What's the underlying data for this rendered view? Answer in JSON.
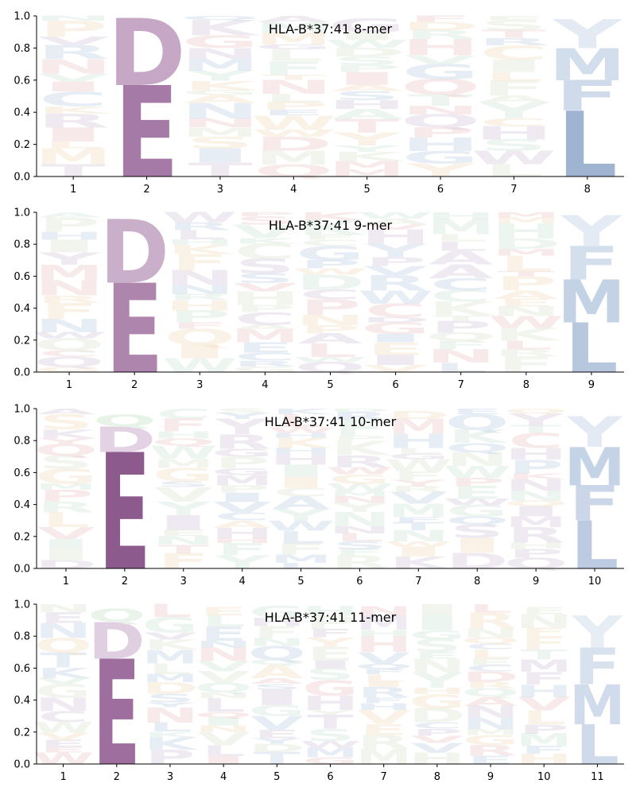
{
  "chart_data": [
    {
      "type": "sequence-logo",
      "title": "HLA-B*37:41 8-mer",
      "ylim": [
        0,
        1
      ],
      "yticks": [
        "0.0",
        "0.2",
        "0.4",
        "0.6",
        "0.8",
        "1.0"
      ],
      "positions": [
        "1",
        "2",
        "3",
        "4",
        "5",
        "6",
        "7",
        "8"
      ],
      "anchors": [
        {
          "position": 2,
          "stack": [
            {
              "letter": "E",
              "value": 0.57,
              "color": "#a57aa6",
              "opacity": 1.0
            },
            {
              "letter": "D",
              "value": 0.42,
              "color": "#c6a8c6",
              "opacity": 1.0
            }
          ]
        },
        {
          "position": 8,
          "stack": [
            {
              "letter": "L",
              "value": 0.41,
              "color": "#9fb4d1",
              "opacity": 1.0
            },
            {
              "letter": "F",
              "value": 0.19,
              "color": "#cfdbea",
              "opacity": 1.0
            },
            {
              "letter": "M",
              "value": 0.2,
              "color": "#d3deec",
              "opacity": 1.0
            },
            {
              "letter": "Y",
              "value": 0.18,
              "color": "#e3eaf3",
              "opacity": 1.0
            }
          ]
        }
      ]
    },
    {
      "type": "sequence-logo",
      "title": "HLA-B*37:41 9-mer",
      "ylim": [
        0,
        1
      ],
      "yticks": [
        "0.0",
        "0.2",
        "0.4",
        "0.6",
        "0.8",
        "1.0"
      ],
      "positions": [
        "1",
        "2",
        "3",
        "4",
        "5",
        "6",
        "7",
        "8",
        "9"
      ],
      "anchors": [
        {
          "position": 2,
          "stack": [
            {
              "letter": "E",
              "value": 0.56,
              "color": "#ad85ad",
              "opacity": 1.0
            },
            {
              "letter": "D",
              "value": 0.4,
              "color": "#c9afc9",
              "opacity": 1.0
            }
          ]
        },
        {
          "position": 9,
          "stack": [
            {
              "letter": "L",
              "value": 0.31,
              "color": "#b6c7de",
              "opacity": 1.0
            },
            {
              "letter": "M",
              "value": 0.27,
              "color": "#c3d2e5",
              "opacity": 1.0
            },
            {
              "letter": "F",
              "value": 0.21,
              "color": "#d4dfed",
              "opacity": 1.0
            },
            {
              "letter": "Y",
              "value": 0.19,
              "color": "#e4ebf4",
              "opacity": 1.0
            }
          ]
        }
      ]
    },
    {
      "type": "sequence-logo",
      "title": "HLA-B*37:41 10-mer",
      "ylim": [
        0,
        1
      ],
      "yticks": [
        "0.0",
        "0.2",
        "0.4",
        "0.6",
        "0.8",
        "1.0"
      ],
      "positions": [
        "1",
        "2",
        "3",
        "4",
        "5",
        "6",
        "7",
        "8",
        "9",
        "10"
      ],
      "anchors": [
        {
          "position": 2,
          "stack": [
            {
              "letter": "E",
              "value": 0.73,
              "color": "#8c5a8c",
              "opacity": 1.0
            },
            {
              "letter": "D",
              "value": 0.16,
              "color": "#e3d2e3",
              "opacity": 1.0
            },
            {
              "letter": "Q",
              "value": 0.07,
              "color": "#e8f3e8",
              "opacity": 1.0
            }
          ]
        },
        {
          "position": 10,
          "stack": [
            {
              "letter": "L",
              "value": 0.3,
              "color": "#bccbe1",
              "opacity": 1.0
            },
            {
              "letter": "F",
              "value": 0.22,
              "color": "#cbd7e9",
              "opacity": 1.0
            },
            {
              "letter": "M",
              "value": 0.24,
              "color": "#c5d3e6",
              "opacity": 1.0
            },
            {
              "letter": "Y",
              "value": 0.19,
              "color": "#e3eaf3",
              "opacity": 1.0
            }
          ]
        }
      ]
    },
    {
      "type": "sequence-logo",
      "title": "HLA-B*37:41 11-mer",
      "ylim": [
        0,
        1
      ],
      "yticks": [
        "0.0",
        "0.2",
        "0.4",
        "0.6",
        "0.8",
        "1.0"
      ],
      "positions": [
        "1",
        "2",
        "3",
        "4",
        "5",
        "6",
        "7",
        "8",
        "9",
        "10",
        "11"
      ],
      "anchors": [
        {
          "position": 2,
          "stack": [
            {
              "letter": "E",
              "value": 0.66,
              "color": "#9d6e9e",
              "opacity": 1.0
            },
            {
              "letter": "D",
              "value": 0.23,
              "color": "#e0cfe0",
              "opacity": 1.0
            },
            {
              "letter": "Q",
              "value": 0.08,
              "color": "#e9f3e9",
              "opacity": 1.0
            }
          ]
        },
        {
          "position": 11,
          "stack": [
            {
              "letter": "L",
              "value": 0.25,
              "color": "#cfdbeb",
              "opacity": 1.0
            },
            {
              "letter": "M",
              "value": 0.25,
              "color": "#d0dbeb",
              "opacity": 1.0
            },
            {
              "letter": "F",
              "value": 0.23,
              "color": "#d8e2ef",
              "opacity": 1.0
            },
            {
              "letter": "Y",
              "value": 0.2,
              "color": "#e6edf5",
              "opacity": 1.0
            }
          ]
        }
      ]
    }
  ],
  "background_letters": [
    "H",
    "S",
    "A",
    "R",
    "K",
    "G",
    "T",
    "V",
    "N",
    "P",
    "Y",
    "W",
    "Q",
    "M",
    "I",
    "F",
    "C",
    "L",
    "E",
    "D"
  ],
  "background_colors": [
    "#c9d6e8",
    "#dfe9d6",
    "#f0d0d0",
    "#dcd0e0",
    "#f5e3c8",
    "#d8e8e0"
  ]
}
